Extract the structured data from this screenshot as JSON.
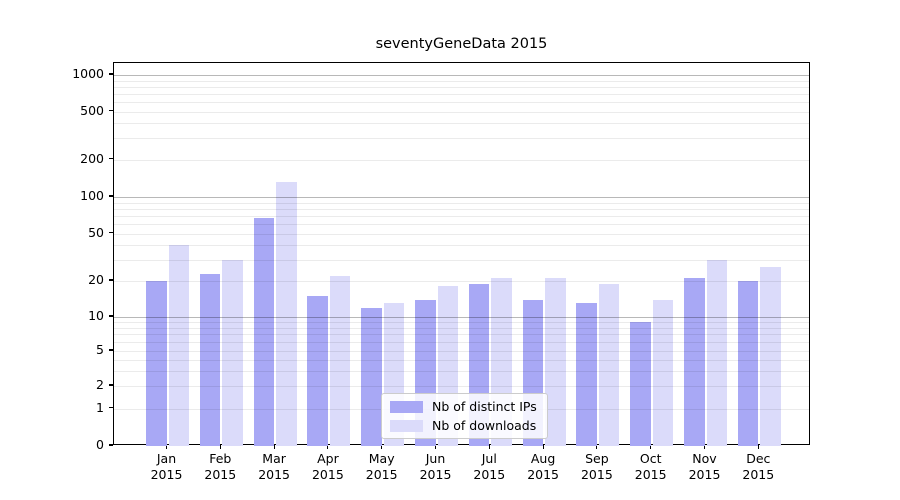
{
  "chart_data": {
    "type": "bar",
    "title": "seventyGeneData 2015",
    "categories": [
      "Jan",
      "Feb",
      "Mar",
      "Apr",
      "May",
      "Jun",
      "Jul",
      "Aug",
      "Sep",
      "Oct",
      "Nov",
      "Dec"
    ],
    "category_year": "2015",
    "series": [
      {
        "name": "Nb of distinct IPs",
        "color": "#a8a8f5",
        "values": [
          20,
          23,
          67,
          15,
          12,
          14,
          19,
          14,
          13,
          9,
          21,
          20
        ]
      },
      {
        "name": "Nb of downloads",
        "color": "#dbdbfa",
        "values": [
          40,
          30,
          133,
          22,
          13,
          18,
          21,
          21,
          19,
          14,
          30,
          26
        ]
      }
    ],
    "yscale": "symlog",
    "ylim": [
      0,
      1260
    ],
    "yticks": [
      0,
      1,
      2,
      5,
      10,
      20,
      50,
      100,
      200,
      500,
      1000
    ],
    "major_gridlines": [
      10,
      100,
      1000
    ],
    "minor_gridlines": [
      1,
      2,
      3,
      4,
      5,
      6,
      7,
      8,
      9,
      20,
      30,
      40,
      50,
      60,
      70,
      80,
      90,
      200,
      300,
      400,
      500,
      600,
      700,
      800,
      900
    ],
    "grid": true,
    "legend_position": "lower center",
    "xlabel": "",
    "ylabel": ""
  },
  "colors": {
    "background": "#ffffff",
    "axis": "#000000",
    "bar_distinct_ips": "#a8a8f5",
    "bar_downloads": "#dbdbfa",
    "grid_major": "rgba(0,0,0,0.28)",
    "grid_minor": "rgba(0,0,0,0.08)"
  }
}
